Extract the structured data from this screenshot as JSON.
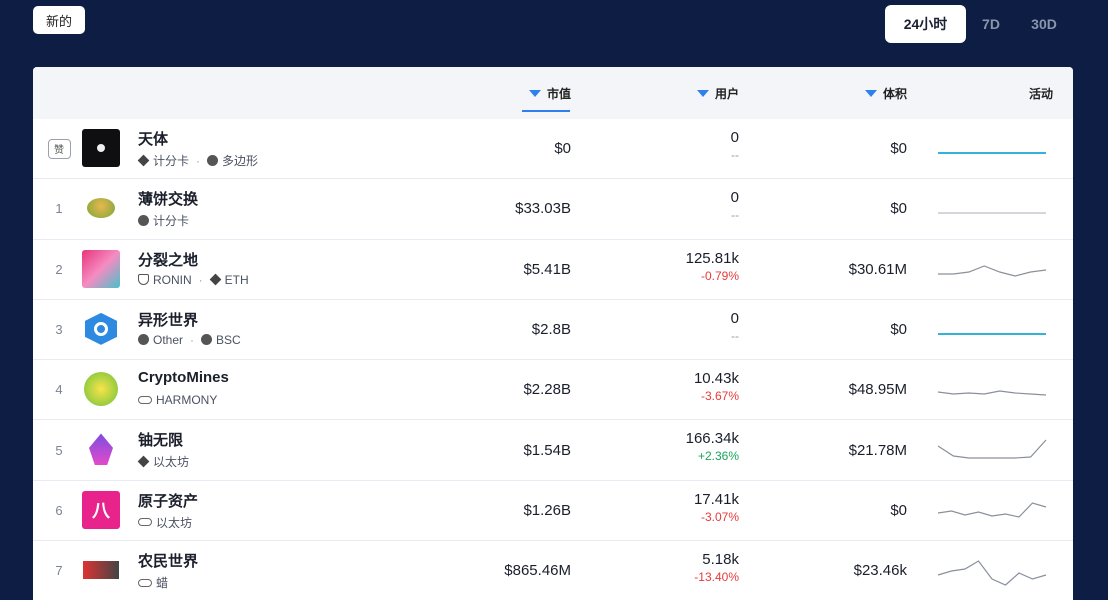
{
  "new_button": "新的",
  "range_tabs": [
    {
      "label": "24小时",
      "active": true
    },
    {
      "label": "7D",
      "active": false
    },
    {
      "label": "30D",
      "active": false
    }
  ],
  "table": {
    "headers": {
      "tvl": "市值",
      "users": "用户",
      "volume": "体积",
      "activity": "活动"
    },
    "rows": [
      {
        "rank": "赞",
        "name": "天体",
        "chains": [
          {
            "icon": "ethereum-icon",
            "label": "计分卡"
          },
          {
            "icon": "polygon-icon",
            "label": "多边形"
          }
        ],
        "tvl": "$0",
        "users": "0",
        "users_change": "--",
        "change_type": "none",
        "volume": "$0",
        "logo": "dark",
        "spark_color": "#35b2d8",
        "spark": [
          20,
          20,
          20,
          20,
          20,
          20,
          20
        ]
      },
      {
        "rank": "1",
        "name": "薄饼交换",
        "chains": [
          {
            "icon": "scorecard-icon",
            "label": "计分卡"
          }
        ],
        "tvl": "$33.03B",
        "users": "0",
        "users_change": "--",
        "change_type": "none",
        "volume": "$0",
        "logo": "pancake",
        "spark_color": "#b9bec7",
        "spark": [
          20,
          20,
          20,
          20,
          20,
          20,
          20
        ]
      },
      {
        "rank": "2",
        "name": "分裂之地",
        "chains": [
          {
            "icon": "ronin-icon",
            "label": "RONIN"
          },
          {
            "icon": "ethereum-icon",
            "label": "ETH"
          }
        ],
        "tvl": "$5.41B",
        "users": "125.81k",
        "users_change": "-0.79%",
        "change_type": "neg",
        "volume": "$30.61M",
        "logo": "axie",
        "spark_color": "#8a909b",
        "spark": [
          20,
          20,
          18,
          12,
          18,
          22,
          18,
          16
        ]
      },
      {
        "rank": "3",
        "name": "异形世界",
        "chains": [
          {
            "icon": "other-icon",
            "label": "Other"
          },
          {
            "icon": "bsc-icon",
            "label": "BSC"
          }
        ],
        "tvl": "$2.8B",
        "users": "0",
        "users_change": "--",
        "change_type": "none",
        "volume": "$0",
        "logo": "alien",
        "spark_color": "#35b2d8",
        "spark": [
          20,
          20,
          20,
          20,
          20,
          20,
          20
        ]
      },
      {
        "rank": "4",
        "name": "CryptoMines",
        "chains": [
          {
            "icon": "harmony-icon",
            "label": "HARMONY"
          }
        ],
        "tvl": "$2.28B",
        "users": "10.43k",
        "users_change": "-3.67%",
        "change_type": "neg",
        "volume": "$48.95M",
        "logo": "cryptomines",
        "spark_color": "#8a909b",
        "spark": [
          18,
          20,
          19,
          20,
          17,
          19,
          20,
          21
        ]
      },
      {
        "rank": "5",
        "name": "铀无限",
        "chains": [
          {
            "icon": "ethereum-icon",
            "label": "以太坊"
          }
        ],
        "tvl": "$1.54B",
        "users": "166.34k",
        "users_change": "+2.36%",
        "change_type": "pos",
        "volume": "$21.78M",
        "logo": "gem",
        "spark_color": "#8a909b",
        "spark": [
          12,
          22,
          24,
          24,
          24,
          24,
          23,
          6
        ]
      },
      {
        "rank": "6",
        "name": "原子资产",
        "chains": [
          {
            "icon": "link-icon",
            "label": "以太坊"
          }
        ],
        "tvl": "$1.26B",
        "users": "17.41k",
        "users_change": "-3.07%",
        "change_type": "neg",
        "volume": "$0",
        "logo": "atomic",
        "spark_color": "#8a909b",
        "spark": [
          18,
          16,
          20,
          17,
          21,
          19,
          22,
          8,
          12
        ]
      },
      {
        "rank": "7",
        "name": "农民世界",
        "chains": [
          {
            "icon": "link-icon",
            "label": "蜡"
          }
        ],
        "tvl": "$865.46M",
        "users": "5.18k",
        "users_change": "-13.40%",
        "change_type": "neg",
        "volume": "$23.46k",
        "logo": "farmers",
        "spark_color": "#8a909b",
        "spark": [
          20,
          16,
          14,
          6,
          24,
          30,
          18,
          24,
          20
        ]
      }
    ]
  }
}
